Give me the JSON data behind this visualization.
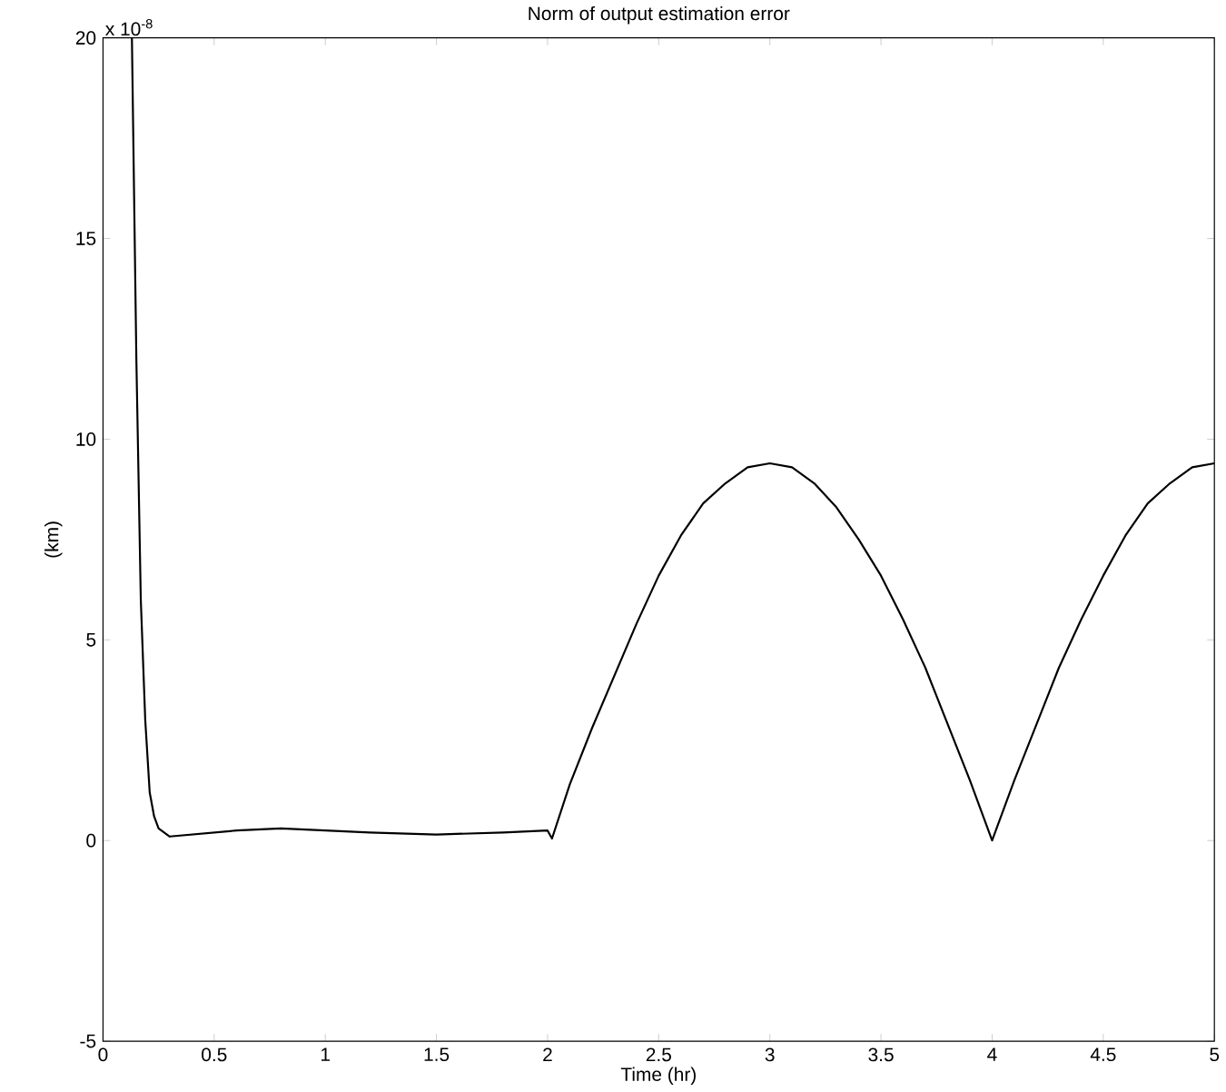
{
  "chart_data": {
    "type": "line",
    "title": "Norm of output estimation error",
    "xlabel": "Time (hr)",
    "ylabel": "(km)",
    "annotations": [
      "x 10$^{-8}$"
    ],
    "xlim": [
      0,
      5
    ],
    "ylim": [
      -5,
      20
    ],
    "xticks": [
      0,
      0.5,
      1,
      1.5,
      2,
      2.5,
      3,
      3.5,
      4,
      4.5,
      5
    ],
    "yticks": [
      -5,
      0,
      5,
      10,
      15,
      20
    ],
    "grid": false,
    "marker": "none",
    "line_style": "solid",
    "series": [
      {
        "color": "#000000",
        "x": [
          0.13,
          0.15,
          0.17,
          0.19,
          0.21,
          0.23,
          0.25,
          0.3,
          0.4,
          0.6,
          0.8,
          1.0,
          1.2,
          1.5,
          1.8,
          2.0,
          2.02,
          2.1,
          2.2,
          2.3,
          2.4,
          2.5,
          2.6,
          2.7,
          2.8,
          2.9,
          3.0,
          3.1,
          3.2,
          3.3,
          3.4,
          3.5,
          3.6,
          3.7,
          3.8,
          3.9,
          4.0,
          4.1,
          4.2,
          4.3,
          4.4,
          4.5,
          4.6,
          4.7,
          4.8,
          4.9,
          5.0
        ],
        "values": [
          20,
          12,
          6,
          3,
          1.2,
          0.6,
          0.3,
          0.1,
          0.15,
          0.25,
          0.3,
          0.25,
          0.2,
          0.15,
          0.2,
          0.25,
          0.05,
          1.4,
          2.8,
          4.1,
          5.4,
          6.6,
          7.6,
          8.4,
          8.9,
          9.3,
          9.4,
          9.3,
          8.9,
          8.3,
          7.5,
          6.6,
          5.5,
          4.3,
          2.9,
          1.5,
          0.0,
          1.5,
          2.9,
          4.3,
          5.5,
          6.6,
          7.6,
          8.4,
          8.9,
          9.3,
          9.4
        ]
      }
    ]
  }
}
